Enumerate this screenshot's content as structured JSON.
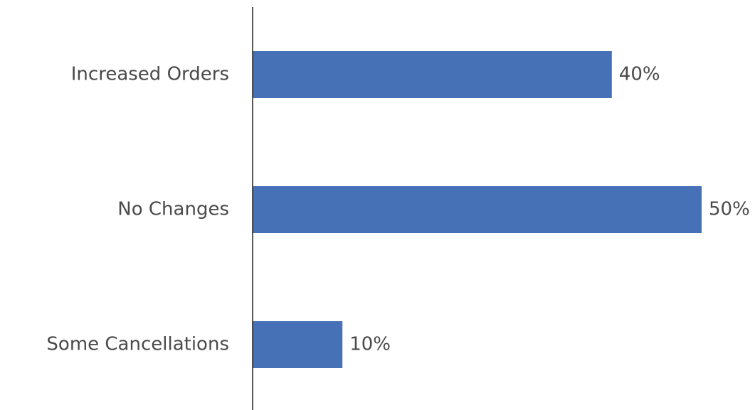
{
  "chart_data": {
    "type": "bar",
    "orientation": "horizontal",
    "categories": [
      "Increased Orders",
      "No Changes",
      "Some Cancellations"
    ],
    "values": [
      40,
      50,
      10
    ],
    "value_labels": [
      "40%",
      "50%",
      "10%"
    ],
    "xlim": [
      0,
      50
    ],
    "unit": "%",
    "grid": false,
    "legend": "none",
    "colors": {
      "bar": "#4671b7",
      "axis": "#222222",
      "text": "#4a4a4a"
    }
  }
}
